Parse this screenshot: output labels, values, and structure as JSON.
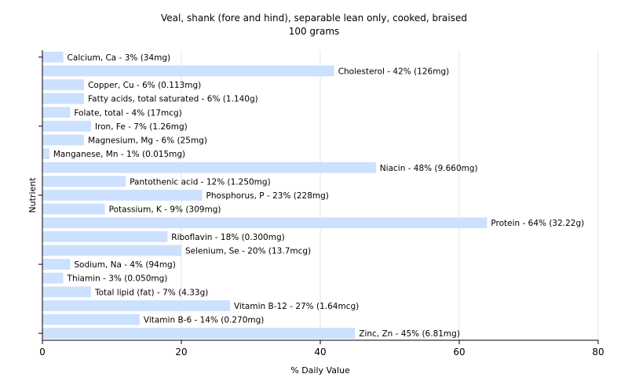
{
  "chart_data": {
    "type": "bar",
    "orientation": "horizontal",
    "title": "Veal, shank (fore and hind), separable lean only, cooked, braised",
    "subtitle": "100 grams",
    "xlabel": "% Daily Value",
    "ylabel": "Nutrient",
    "xlim": [
      0,
      80
    ],
    "xticks": [
      0,
      20,
      40,
      60,
      80
    ],
    "grid": true,
    "colors": {
      "bar": "#cce0ff",
      "grid": "#e6e6e6",
      "axis": "#000000"
    },
    "categories": [
      "Calcium, Ca",
      "Cholesterol",
      "Copper, Cu",
      "Fatty acids, total saturated",
      "Folate, total",
      "Iron, Fe",
      "Magnesium, Mg",
      "Manganese, Mn",
      "Niacin",
      "Pantothenic acid",
      "Phosphorus, P",
      "Potassium, K",
      "Protein",
      "Riboflavin",
      "Selenium, Se",
      "Sodium, Na",
      "Thiamin",
      "Total lipid (fat)",
      "Vitamin B-12",
      "Vitamin B-6",
      "Zinc, Zn"
    ],
    "values": [
      3,
      42,
      6,
      6,
      4,
      7,
      6,
      1,
      48,
      12,
      23,
      9,
      64,
      18,
      20,
      4,
      3,
      7,
      27,
      14,
      45
    ],
    "labels": [
      "Calcium, Ca - 3% (34mg)",
      "Cholesterol - 42% (126mg)",
      "Copper, Cu - 6% (0.113mg)",
      "Fatty acids, total saturated - 6% (1.140g)",
      "Folate, total - 4% (17mcg)",
      "Iron, Fe - 7% (1.26mg)",
      "Magnesium, Mg - 6% (25mg)",
      "Manganese, Mn - 1% (0.015mg)",
      "Niacin - 48% (9.660mg)",
      "Pantothenic acid - 12% (1.250mg)",
      "Phosphorus, P - 23% (228mg)",
      "Potassium, K - 9% (309mg)",
      "Protein - 64% (32.22g)",
      "Riboflavin - 18% (0.300mg)",
      "Selenium, Se - 20% (13.7mcg)",
      "Sodium, Na - 4% (94mg)",
      "Thiamin - 3% (0.050mg)",
      "Total lipid (fat) - 7% (4.33g)",
      "Vitamin B-12 - 27% (1.64mcg)",
      "Vitamin B-6 - 14% (0.270mg)",
      "Zinc, Zn - 45% (6.81mg)"
    ]
  }
}
